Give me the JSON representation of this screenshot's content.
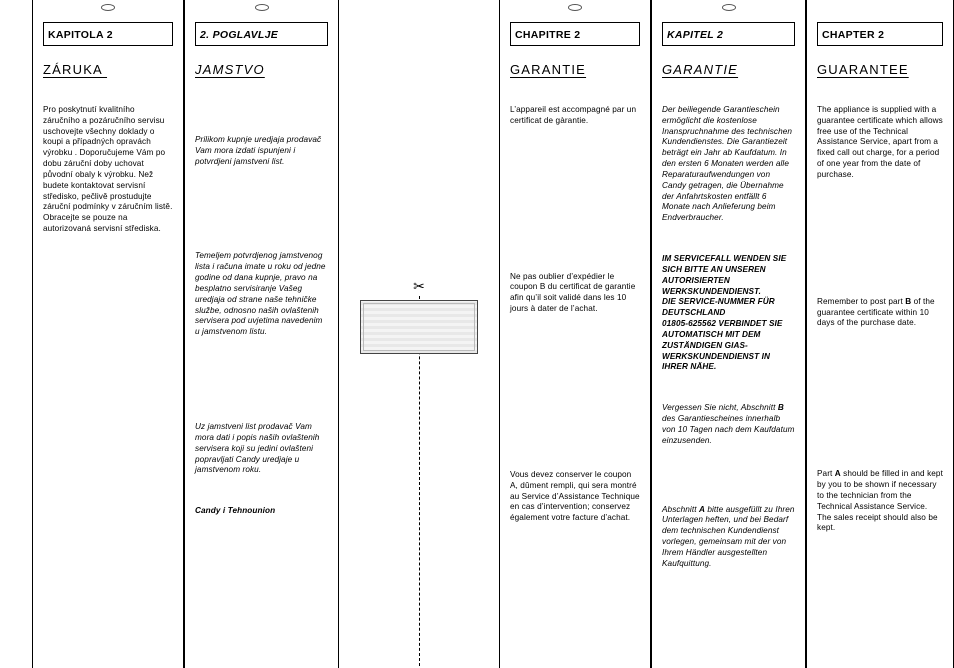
{
  "col1": {
    "chapter": "KAPITOLA 2",
    "title": "ZÁRUKA ",
    "p1": "Pro poskytnutí kvalitního záručního a pozáručního servisu uschovejte všechny doklady o koupi a případných opravách výrobku . Doporučujeme Vám po dobu záruční doby uchovat původní obaly k výrobku. Než budete kontaktovat servisní středisko, pečlivě prostudujte záruční podmínky v záručním listě. Obracejte se pouze na autorizovaná servisní střediska."
  },
  "col2": {
    "chapter": "2. POGLAVLJE",
    "title": "JAMSTVO",
    "p1": "Prilikom kupnje uredjaja prodavač Vam mora izdati ispunjeni i potvrdjeni jamstveni list.",
    "p2": "Temeljem potvrdjenog jamstvenog lista i računa imate u roku od jedne godine od dana kupnje, pravo na besplatno servisiranje Vašeg uredjaja od strane naše tehničke službe, odnosno naših ovlaštenih servisera pod uvjetima navedenim u jamstvenom listu.",
    "p3": "Uz jamstveni list prodavač Vam mora dati i popis naših ovlaštenih servisera koji su jedini ovlašteni popravljati Candy uredjaje u jamstvenom roku.",
    "p4": "Candy i Tehnounion"
  },
  "col4": {
    "chapter": "CHAPITRE 2",
    "title": "GARANTIE",
    "p1": "L’appareil est accompagné par un certificat de gàrantie.",
    "p2": "Ne pas oublier d’expédier le coupon B du certificat de garantie afin qu’il soit validé dans les 10 jours à dater de l’achat.",
    "p3": "Vous devez conserver le coupon A, dûment rempli, qui sera montré au Service d’Assistance Technique en cas d’intervention; conservez également votre facture d’achat."
  },
  "col5": {
    "chapter": "KAPITEL 2",
    "title": "GARANTIE",
    "p1": "Der beiliegende Garantieschein ermöglicht die kostenlose Inanspruchnahme des technischen Kundendienstes. Die Garantiezeit beträgt ein Jahr ab Kaufdatum. In den ersten 6 Monaten werden alle Reparaturaufwendungen von Candy getragen, die Übernahme der Anfahrtskosten entfällt 6 Monate nach Anlieferung beim Endverbraucher.",
    "p2": "IM SERVICEFALL WENDEN SIE SICH BITTE AN UNSEREN AUTORISIERTEN WERKSKUNDENDIENST.\nDIE SERVICE-NUMMER FÜR DEUTSCHLAND\n01805-625562 VERBINDET SIE AUTOMATISCH MIT DEM ZUSTÄNDIGEN GIAS-WERKSKUNDENDIENST IN IHRER NÄHE.",
    "p3a": "Vergessen Sie nicht, Abschnitt ",
    "p3b": "B",
    "p3c": " des Garantiescheines innerhalb von 10 Tagen nach dem Kaufdatum einzusenden.",
    "p4a": "Abschnitt ",
    "p4b": "A",
    "p4c": " bitte ausgefüllt zu Ihren Unterlagen heften, und bei Bedarf dem technischen Kundendienst vorlegen, gemeinsam mit der von Ihrem Händler ausgestellten Kaufquittung."
  },
  "col6": {
    "chapter": "CHAPTER 2",
    "title": "GUARANTEE",
    "p1": "The appliance is supplied with a guarantee certificate which allows free use of the Technical Assistance Service, apart from a fixed call out charge, for a period of one year from the date of purchase.",
    "p2a": "Remember to post part ",
    "p2b": "B",
    "p2c": " of the guarantee certificate within 10 days of the purchase date.",
    "p3a": "Part ",
    "p3b": "A",
    "p3c": " should be filled in and kept by you to be shown if necessary to the technician from the Technical Assistance Service. The sales receipt should also be kept."
  }
}
